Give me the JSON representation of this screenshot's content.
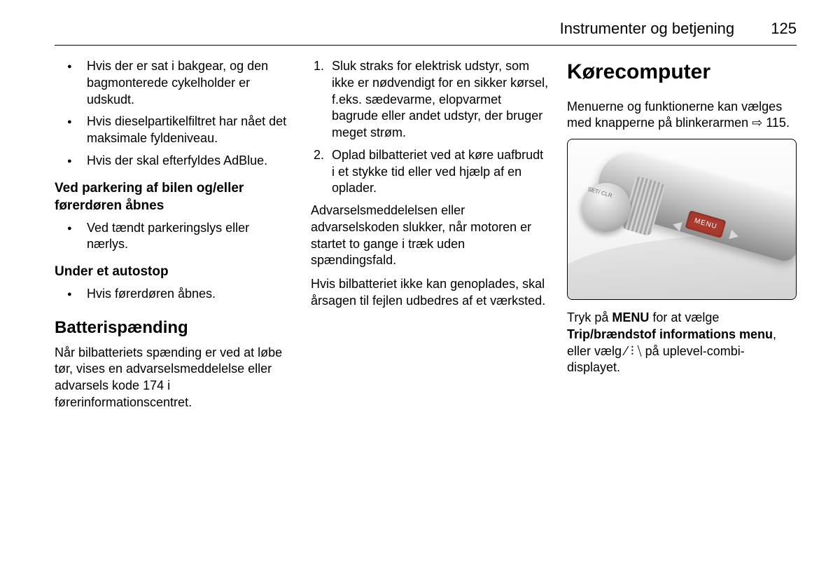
{
  "header": {
    "title": "Instrumenter og betjening",
    "pagenum": "125"
  },
  "col1": {
    "bullets1": [
      "Hvis der er sat i bakgear, og den bagmonterede cykelholder er udskudt.",
      "Hvis dieselpartikelfiltret har nået det maksimale fyldeniveau.",
      "Hvis der skal efterfyldes AdBlue."
    ],
    "h_parking": "Ved parkering af bilen og/eller førerdøren åbnes",
    "bullets2": [
      "Ved tændt parkeringslys eller nærlys."
    ],
    "h_autostop": "Under et autostop",
    "bullets3": [
      "Hvis førerdøren åbnes."
    ],
    "h_battery": "Batterispænding",
    "battery_para": "Når bilbatteriets spænding er ved at løbe tør, vises en advarselsmeddelelse eller advarsels kode 174 i førerinformationscentret."
  },
  "col2": {
    "numbered": [
      "Sluk straks for elektrisk udstyr, som ikke er nødvendigt for en sikker kørsel, f.eks. sædevarme, elopvarmet bagrude eller andet udstyr, der bruger meget strøm.",
      "Oplad bilbatteriet ved at køre uafbrudt i et stykke tid eller ved hjælp af en oplader."
    ],
    "para1": "Advarselsmeddelelsen eller advarselskoden slukker, når motoren er startet to gange i træk uden spændingsfald.",
    "para2": "Hvis bilbatteriet ikke kan genoplades, skal årsagen til fejlen udbedres af et værksted."
  },
  "col3": {
    "h_main": "Kørecomputer",
    "intro_a": "Menuerne og funktionerne kan vælges med knapperne på blinkerarmen ",
    "ref_icon": "⇨",
    "ref_page": " 115.",
    "menu_label": "MENU",
    "set_label": "SET/\nCLR",
    "caption_a": "Tryk på ",
    "caption_menu": "MENU",
    "caption_b": " for at vælge ",
    "caption_trip": "Trip/brændstof informations menu",
    "caption_c": ", eller vælg ",
    "caption_sym": "⁄ ⫶ ⧹",
    "caption_d": " på uplevel-combi-displayet."
  },
  "colors": {
    "text": "#000000",
    "bg": "#ffffff",
    "menu_btn": "#a83a2e"
  }
}
